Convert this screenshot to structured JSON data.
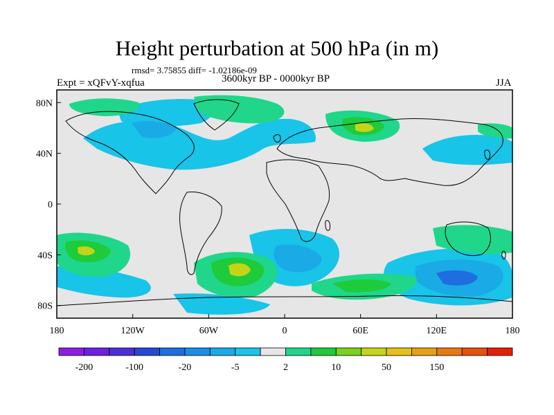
{
  "title": "Height perturbation at 500 hPa (in m)",
  "stats": "rmsd= 3.75855 diff= -1.02186e-09",
  "experiment": "Expt = xQFvY-xqfua",
  "period": "3600kyr BP - 0000kyr BP",
  "season": "JJA",
  "map": {
    "lon_range": [
      -180,
      180
    ],
    "lat_range": [
      -90,
      90
    ],
    "lon_ticks": [
      {
        "value": -180,
        "label": "180"
      },
      {
        "value": -120,
        "label": "120W"
      },
      {
        "value": -60,
        "label": "60W"
      },
      {
        "value": 0,
        "label": "0"
      },
      {
        "value": 60,
        "label": "60E"
      },
      {
        "value": 120,
        "label": "120E"
      },
      {
        "value": 180,
        "label": "180"
      }
    ],
    "lat_ticks": [
      {
        "value": 80,
        "label": "80N"
      },
      {
        "value": 40,
        "label": "40N"
      },
      {
        "value": 0,
        "label": "0"
      },
      {
        "value": -40,
        "label": "40S"
      },
      {
        "value": -80,
        "label": "80S"
      }
    ],
    "background_color": "#e6e6e6"
  },
  "colorbar": {
    "colors": [
      "#8c1ee6",
      "#6e22e0",
      "#4e2ed8",
      "#2648d6",
      "#1e6ee0",
      "#1a8ce6",
      "#1aaae6",
      "#18c4e8",
      "#e6e6e6",
      "#20d68a",
      "#1ecb3a",
      "#7ad21a",
      "#c6d418",
      "#e6c016",
      "#e6a014",
      "#e67a10",
      "#e6500c",
      "#e61e08"
    ],
    "labels": [
      {
        "boundary": 1,
        "text": "-200"
      },
      {
        "boundary": 3,
        "text": "-100"
      },
      {
        "boundary": 5,
        "text": "-20"
      },
      {
        "boundary": 7,
        "text": "-5"
      },
      {
        "boundary": 9,
        "text": "2"
      },
      {
        "boundary": 11,
        "text": "10"
      },
      {
        "boundary": 13,
        "text": "50"
      },
      {
        "boundary": 15,
        "text": "150"
      }
    ]
  }
}
